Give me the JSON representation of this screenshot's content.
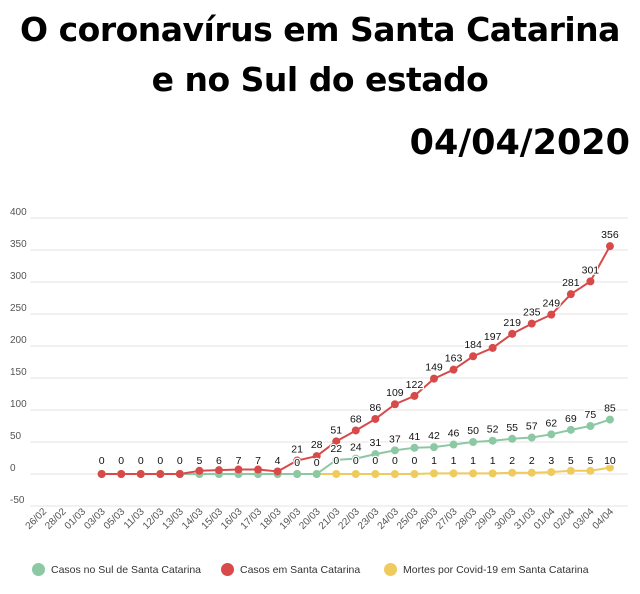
{
  "header": {
    "title_line1": "O coronavírus em Santa Catarina",
    "title_line2": "e no Sul do estado",
    "date": "04/04/2020"
  },
  "chart_data": {
    "type": "line",
    "categories": [
      "26/02",
      "28/02",
      "01/03",
      "03/03",
      "05/03",
      "11/03",
      "12/03",
      "13/03",
      "14/03",
      "15/03",
      "16/03",
      "17/03",
      "18/03",
      "19/03",
      "20/03",
      "21/03",
      "22/03",
      "23/03",
      "24/03",
      "25/03",
      "26/03",
      "27/03",
      "28/03",
      "29/03",
      "30/03",
      "31/03",
      "01/04",
      "02/04",
      "03/04",
      "04/04"
    ],
    "y_ticks": [
      400,
      350,
      300,
      250,
      200,
      150,
      100,
      50,
      0,
      -50
    ],
    "ylim": [
      -50,
      400
    ],
    "grid": true,
    "legend_position": "bottom",
    "series": [
      {
        "name": "Casos no Sul de Santa Catarina",
        "color": "#8cc8a4",
        "values": [
          null,
          null,
          null,
          0,
          0,
          0,
          0,
          0,
          0,
          0,
          0,
          0,
          0,
          0,
          0,
          22,
          24,
          31,
          37,
          41,
          42,
          46,
          50,
          52,
          55,
          57,
          62,
          69,
          75,
          85
        ],
        "labels": [
          null,
          null,
          null,
          null,
          null,
          null,
          null,
          null,
          null,
          null,
          null,
          null,
          null,
          "0",
          "0",
          "22",
          "24",
          "31",
          "37",
          "41",
          "42",
          "46",
          "50",
          "52",
          "55",
          "57",
          "62",
          "69",
          "75",
          "85"
        ]
      },
      {
        "name": "Casos em Santa Catarina",
        "color": "#d84a4a",
        "values": [
          null,
          null,
          null,
          0,
          0,
          0,
          0,
          0,
          5,
          6,
          7,
          7,
          4,
          21,
          28,
          51,
          68,
          86,
          109,
          122,
          149,
          163,
          184,
          197,
          219,
          235,
          249,
          281,
          301,
          356
        ],
        "labels": [
          null,
          null,
          null,
          null,
          null,
          null,
          null,
          null,
          "5",
          "6",
          "7",
          "7",
          "4",
          "21",
          "28",
          "51",
          "68",
          "86",
          "109",
          "122",
          "149",
          "163",
          "184",
          "197",
          "219",
          "235",
          "249",
          "281",
          "301",
          "356"
        ]
      },
      {
        "name": "Mortes por Covid-19 em Santa Catarina",
        "color": "#eecb5c",
        "values": [
          null,
          null,
          null,
          0,
          0,
          0,
          0,
          0,
          0,
          0,
          0,
          0,
          0,
          0,
          0,
          0,
          0,
          0,
          0,
          0,
          1,
          1,
          1,
          1,
          2,
          2,
          3,
          5,
          5,
          10
        ],
        "labels": [
          null,
          null,
          null,
          "0",
          "0",
          "0",
          "0",
          "0",
          null,
          null,
          null,
          null,
          null,
          null,
          null,
          "0",
          "0",
          "0",
          "0",
          "0",
          "1",
          "1",
          "1",
          "1",
          "2",
          "2",
          "3",
          "5",
          "5",
          "10"
        ]
      }
    ]
  }
}
